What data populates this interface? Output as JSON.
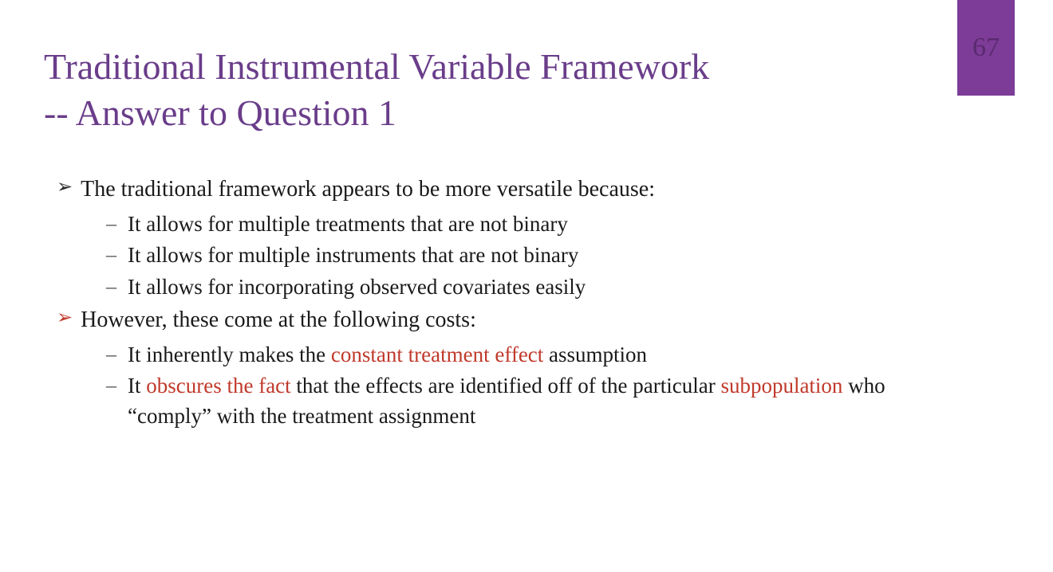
{
  "slide": {
    "badge_number": "67",
    "badge_bg": "#7d3c98",
    "title_line1": "Traditional Instrumental Variable Framework",
    "title_line2": "-- Answer to Question 1",
    "title_color": "#6a3d8a",
    "bullets": {
      "b1": {
        "text": "The traditional framework appears to be more versatile because:",
        "arrow_color": "#2a2a2a",
        "text_color": "#1a1a1a"
      },
      "b1_sub": {
        "s1": "It allows for multiple treatments that are not binary",
        "s2": "It allows for multiple instruments that are not binary",
        "s3": "It allows for incorporating observed covariates easily"
      },
      "b2": {
        "text": "However, these come at the following costs:",
        "arrow_color": "#c0392b",
        "text_color": "#c0392b"
      },
      "b2_sub": {
        "s1_pre": "It inherently makes the ",
        "s1_red": "constant treatment effect",
        "s1_post": " assumption",
        "s2_pre": "It ",
        "s2_red1": "obscures the fact",
        "s2_mid": " that the effects are identified off of the particular ",
        "s2_red2": "subpopulation",
        "s2_post": " who “comply” with the treatment assignment"
      }
    }
  },
  "styling": {
    "red_color": "#c0392b",
    "body_text_color": "#1a1a1a",
    "background": "#ffffff",
    "title_fontsize": 46,
    "body_fontsize_lvl1": 28,
    "body_fontsize_lvl2": 27,
    "font_family": "Georgia, serif"
  }
}
